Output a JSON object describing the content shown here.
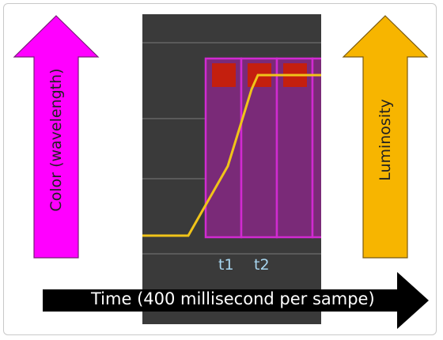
{
  "left_arrow": {
    "label": "Color (wavelength)",
    "color": "#ff00ff"
  },
  "right_arrow": {
    "label": "Luminosity",
    "color": "#f7b500"
  },
  "time_arrow": {
    "label": "Time (400 millisecond per sampe)",
    "color": "#000000"
  },
  "ticks": [
    "t1",
    "t2"
  ],
  "colors": {
    "panel": "#3a3a3a",
    "sample_fill": "#7a2a78",
    "sample_border": "#d12ad1",
    "sample_marker": "#c41f0e",
    "luminosity_line": "#f0c419"
  }
}
